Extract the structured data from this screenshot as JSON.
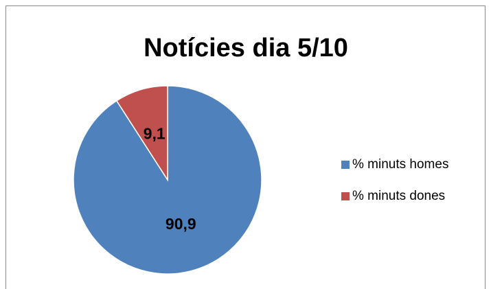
{
  "chart_data": {
    "type": "pie",
    "title": "Notícies dia 5/10",
    "categories": [
      "% minuts homes",
      "% minuts dones"
    ],
    "values": [
      90.9,
      9.1
    ],
    "value_labels": [
      "90,9",
      "9,1"
    ],
    "colors": [
      "#4f81bd",
      "#c0504d"
    ],
    "legend": "right"
  }
}
